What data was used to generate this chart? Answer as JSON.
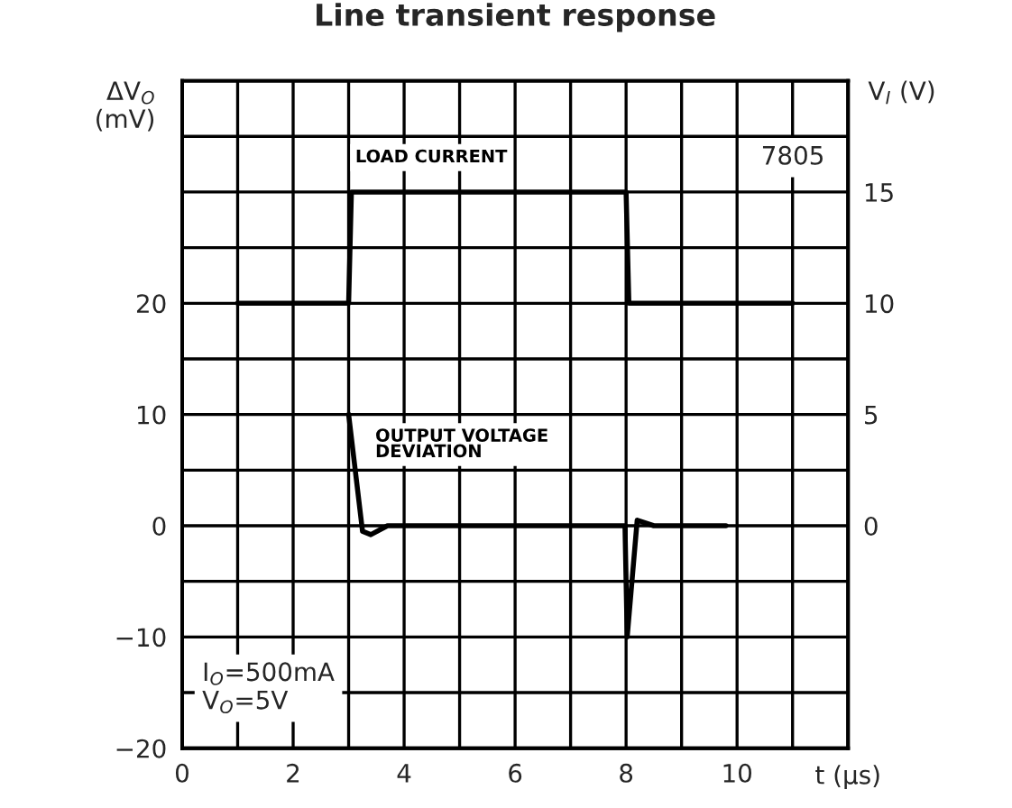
{
  "chart_data": {
    "type": "line",
    "title": "Line transient response",
    "xlabel": "t (µs)",
    "ylabel": "ΔV$_{O}$\n(mV)",
    "y2label": "V$_{I}$ (V)",
    "xlim": [
      0,
      12
    ],
    "xticks": [
      0,
      {
        "value": 1,
        "label": null
      },
      2,
      {
        "value": 3,
        "label": null
      },
      4,
      {
        "value": 5,
        "label": null
      },
      6,
      {
        "value": 7,
        "label": null
      },
      8,
      {
        "value": 9,
        "label": null
      },
      10,
      {
        "value": 11,
        "label": null
      }
    ],
    "ylim": [
      -20,
      40
    ],
    "yticks": [
      -20,
      {
        "value": -15,
        "label": null
      },
      {
        "value": -10,
        "label": "−10"
      },
      {
        "value": -5,
        "label": null
      },
      0,
      {
        "value": 5,
        "label": null
      },
      10,
      {
        "value": 15,
        "label": null
      },
      20,
      {
        "value": 25,
        "label": null
      },
      {
        "value": 30,
        "label": null
      },
      {
        "value": 35,
        "label": null
      }
    ],
    "y2lim": [
      -10,
      20
    ],
    "y2ticks": [
      0,
      5,
      10,
      15
    ],
    "grid": true,
    "legend": false,
    "marker": "none",
    "line_style": "solid",
    "series": [
      {
        "name": "LOAD CURRENT",
        "axis": "y2",
        "color": "#000000",
        "x": [
          1,
          3,
          3.05,
          8,
          8.05,
          11
        ],
        "values": [
          10,
          10,
          15,
          15,
          10,
          10
        ]
      },
      {
        "name": "OUTPUT VOLTAGE\nDEVIATION",
        "color": "#000000",
        "x": [
          3,
          3.25,
          3.4,
          3.7,
          4,
          7.98,
          8.02,
          8.2,
          8.5,
          9.8
        ],
        "values": [
          10,
          -0.5,
          -0.8,
          0,
          0,
          0,
          -10,
          0.5,
          0,
          0
        ]
      }
    ],
    "annotations": [
      "7805",
      "I$_{O}$=500mA\nV$_{O}$=5V"
    ]
  }
}
